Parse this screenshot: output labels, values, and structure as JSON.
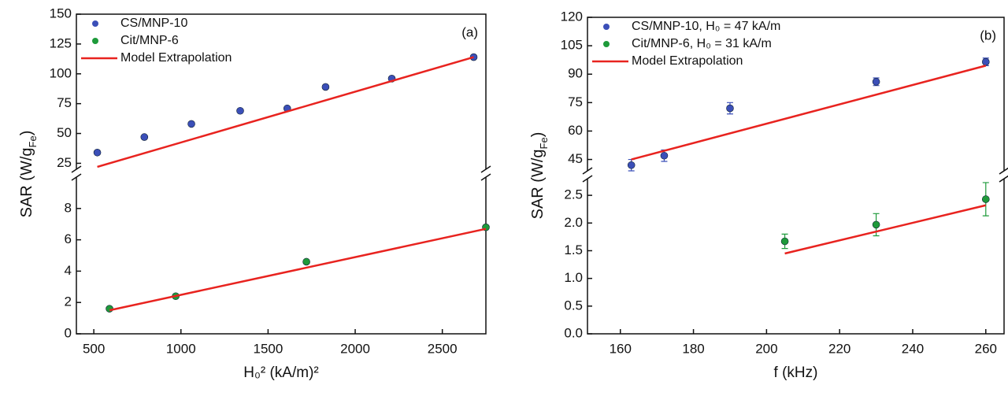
{
  "chart_data": [
    {
      "type": "scatter",
      "panel_label": "(a)",
      "xlabel": "H₀² (kA/m)²",
      "ylabel": [
        "SAR (W/g",
        "Fe",
        ")"
      ],
      "xlim": [
        400,
        2750
      ],
      "xticks": [
        500,
        1000,
        1500,
        2000,
        2500
      ],
      "ylim": [
        0,
        10
      ],
      "yticks": [
        0,
        2,
        4,
        6,
        8
      ],
      "y2lim": [
        20,
        150
      ],
      "y2ticks": [
        25,
        50,
        75,
        100,
        125,
        150
      ],
      "legend": "upper left",
      "series": [
        {
          "name": "CS/MNP-10",
          "color": "#3b4fb8",
          "style": "markers",
          "axis": "y2",
          "x": [
            520,
            790,
            1060,
            1340,
            1610,
            1830,
            2210,
            2680
          ],
          "values": [
            34,
            47,
            58,
            69,
            71,
            89,
            96,
            114
          ]
        },
        {
          "name": "Cit/MNP-6",
          "color": "#1e9a3a",
          "style": "markers",
          "x": [
            590,
            970,
            1720,
            2750
          ],
          "values": [
            1.6,
            2.4,
            4.6,
            6.8
          ]
        },
        {
          "name": "Model Extrapolation",
          "color": "#e8231f",
          "style": "line",
          "axis": "y2",
          "x": [
            520,
            2680
          ],
          "values": [
            22,
            114
          ]
        },
        {
          "color": "#e8231f",
          "style": "line",
          "x": [
            590,
            2750
          ],
          "values": [
            1.5,
            6.7
          ]
        }
      ]
    },
    {
      "type": "scatter",
      "panel_label": "(b)",
      "xlabel": "f (kHz)",
      "ylabel": [
        "SAR (W/g",
        "Fe",
        ")"
      ],
      "xlim": [
        151,
        265
      ],
      "xticks": [
        160,
        180,
        200,
        220,
        240,
        260
      ],
      "ylim": [
        0,
        2.8
      ],
      "yticks": [
        {
          "value": 0,
          "label": "0.0"
        },
        0.5,
        {
          "value": 1,
          "label": "1.0"
        },
        1.5,
        {
          "value": 2,
          "label": "2.0"
        },
        2.5
      ],
      "y2lim": [
        39,
        120
      ],
      "y2ticks": [
        45,
        60,
        75,
        90,
        105,
        120
      ],
      "legend": "upper left",
      "series": [
        {
          "name": "CS/MNP-10, H₀ = 47 kA/m",
          "color": "#3b4fb8",
          "style": "markers",
          "axis": "y2",
          "x": [
            163,
            172,
            190,
            230,
            260
          ],
          "values": [
            42,
            47,
            72,
            86,
            96.5
          ],
          "errors": [
            3,
            3,
            3,
            2,
            2
          ]
        },
        {
          "name": "Cit/MNP-6, H₀ = 31 kA/m",
          "color": "#1e9a3a",
          "style": "markers",
          "x": [
            205,
            230,
            260
          ],
          "values": [
            1.67,
            1.97,
            2.43
          ],
          "errors": [
            0.13,
            0.2,
            0.3
          ]
        },
        {
          "name": "Model Extrapolation",
          "color": "#e8231f",
          "style": "line",
          "axis": "y2",
          "x": [
            163,
            260
          ],
          "values": [
            45,
            94.5
          ]
        },
        {
          "color": "#e8231f",
          "style": "line",
          "x": [
            205,
            260
          ],
          "values": [
            1.45,
            2.32
          ]
        }
      ]
    }
  ]
}
